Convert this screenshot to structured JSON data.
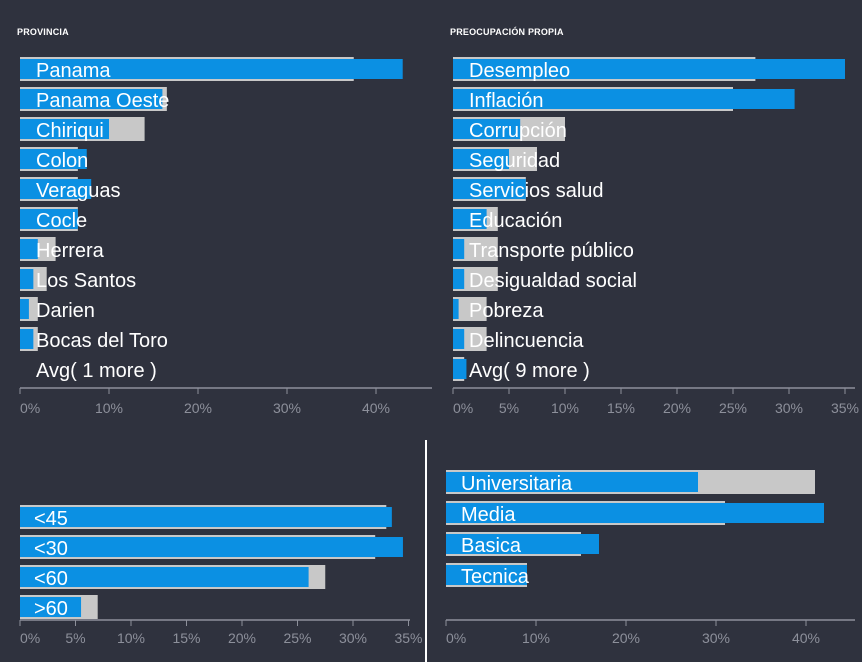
{
  "colors": {
    "background": "#2f323e",
    "primary": "#0b90e3",
    "comparison": "#c8c8c8",
    "axis": "#8d909b"
  },
  "panels": {
    "provincia": {
      "title": "PROVINCIA"
    },
    "preocupacion": {
      "title": "PREOCUPACIÓN PROPIA"
    }
  },
  "chart_data": [
    {
      "id": "provincia",
      "type": "bar",
      "orientation": "horizontal",
      "title": "PROVINCIA",
      "categories": [
        "Panama",
        "Panama Oeste",
        "Chiriqui",
        "Colon",
        "Veraguas",
        "Cocle",
        "Herrera",
        "Los Santos",
        "Darien",
        "Bocas del Toro",
        "Avg( 1 more )"
      ],
      "series": [
        {
          "name": "primary",
          "values": [
            43,
            16,
            10,
            7.5,
            8,
            6.5,
            2,
            1.5,
            1,
            1.5,
            null
          ]
        },
        {
          "name": "comparison",
          "values": [
            37.5,
            16.5,
            14,
            6.5,
            6.5,
            6.5,
            4,
            3,
            2,
            2,
            null
          ]
        }
      ],
      "xlim": [
        0,
        45
      ],
      "ticks": [
        "0%",
        "10%",
        "20%",
        "30%",
        "40%"
      ],
      "tick_values": [
        0,
        10,
        20,
        30,
        40
      ]
    },
    {
      "id": "preocupacion",
      "type": "bar",
      "orientation": "horizontal",
      "title": "PREOCUPACIÓN PROPIA",
      "categories": [
        "Desempleo",
        "Inflación",
        "Corrupción",
        "Seguridad",
        "Servicios salud",
        "Educación",
        "Transporte público",
        "Desigualdad social",
        "Pobreza",
        "Delincuencia",
        "Avg( 9 more )"
      ],
      "series": [
        {
          "name": "primary",
          "values": [
            35,
            30.5,
            6,
            5,
            6.5,
            3,
            1,
            1,
            0.5,
            1,
            1.2
          ]
        },
        {
          "name": "comparison",
          "values": [
            27,
            25,
            10,
            7.5,
            6.5,
            4,
            4,
            4,
            3,
            3,
            1
          ]
        }
      ],
      "xlim": [
        0,
        35
      ],
      "ticks": [
        "0%",
        "5%",
        "10%",
        "15%",
        "20%",
        "25%",
        "30%",
        "35%"
      ],
      "tick_values": [
        0,
        5,
        10,
        15,
        20,
        25,
        30,
        35
      ]
    },
    {
      "id": "edad",
      "type": "bar",
      "orientation": "horizontal",
      "title": "",
      "categories": [
        "<45",
        "<30",
        "<60",
        ">60"
      ],
      "series": [
        {
          "name": "primary",
          "values": [
            33.5,
            34.5,
            26,
            5.5
          ]
        },
        {
          "name": "comparison",
          "values": [
            33,
            32,
            27.5,
            7
          ]
        }
      ],
      "xlim": [
        0,
        35
      ],
      "ticks": [
        "0%",
        "5%",
        "10%",
        "15%",
        "20%",
        "25%",
        "30%",
        "35%"
      ],
      "tick_values": [
        0,
        5,
        10,
        15,
        20,
        25,
        30,
        35
      ]
    },
    {
      "id": "educacion",
      "type": "bar",
      "orientation": "horizontal",
      "title": "",
      "categories": [
        "Universitaria",
        "Media",
        "Basica",
        "Tecnica"
      ],
      "series": [
        {
          "name": "primary",
          "values": [
            28,
            42,
            17,
            9
          ]
        },
        {
          "name": "comparison",
          "values": [
            41,
            31,
            15,
            9
          ]
        }
      ],
      "xlim": [
        0,
        45
      ],
      "ticks": [
        "0%",
        "10%",
        "20%",
        "30%",
        "40%"
      ],
      "tick_values": [
        0,
        10,
        20,
        30,
        40
      ]
    }
  ]
}
